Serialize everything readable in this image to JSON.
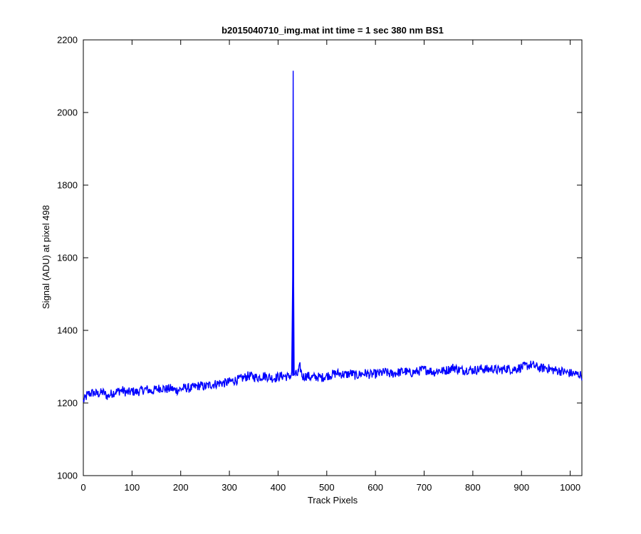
{
  "chart_data": {
    "type": "line",
    "title": "b2015040710_img.mat int time = 1 sec  380 nm BS1",
    "xlabel": "Track Pixels",
    "ylabel": "Signal (ADU) at pixel 498",
    "xlim": [
      0,
      1024
    ],
    "ylim": [
      1000,
      2200
    ],
    "xticks": [
      0,
      100,
      200,
      300,
      400,
      500,
      600,
      700,
      800,
      900,
      1000
    ],
    "yticks": [
      1000,
      1200,
      1400,
      1600,
      1800,
      2000,
      2200
    ],
    "grid": false,
    "legend": "none",
    "series": [
      {
        "color": "#0000ff",
        "points": [
          [
            0,
            1205
          ],
          [
            10,
            1225
          ],
          [
            20,
            1228
          ],
          [
            30,
            1225
          ],
          [
            40,
            1230
          ],
          [
            50,
            1218
          ],
          [
            60,
            1228
          ],
          [
            70,
            1232
          ],
          [
            80,
            1235
          ],
          [
            90,
            1228
          ],
          [
            100,
            1232
          ],
          [
            110,
            1230
          ],
          [
            120,
            1235
          ],
          [
            130,
            1238
          ],
          [
            140,
            1232
          ],
          [
            150,
            1238
          ],
          [
            160,
            1242
          ],
          [
            170,
            1238
          ],
          [
            180,
            1240
          ],
          [
            190,
            1235
          ],
          [
            200,
            1238
          ],
          [
            210,
            1242
          ],
          [
            220,
            1240
          ],
          [
            230,
            1245
          ],
          [
            240,
            1248
          ],
          [
            250,
            1245
          ],
          [
            260,
            1250
          ],
          [
            270,
            1252
          ],
          [
            280,
            1255
          ],
          [
            290,
            1255
          ],
          [
            300,
            1258
          ],
          [
            310,
            1262
          ],
          [
            320,
            1265
          ],
          [
            330,
            1270
          ],
          [
            340,
            1275
          ],
          [
            350,
            1272
          ],
          [
            360,
            1270
          ],
          [
            370,
            1275
          ],
          [
            380,
            1272
          ],
          [
            390,
            1268
          ],
          [
            400,
            1272
          ],
          [
            410,
            1275
          ],
          [
            420,
            1272
          ],
          [
            425,
            1275
          ],
          [
            428,
            1278
          ],
          [
            430,
            1550
          ],
          [
            431,
            2115
          ],
          [
            432,
            1520
          ],
          [
            433,
            1280
          ],
          [
            440,
            1278
          ],
          [
            445,
            1300
          ],
          [
            450,
            1272
          ],
          [
            460,
            1275
          ],
          [
            470,
            1270
          ],
          [
            480,
            1272
          ],
          [
            490,
            1270
          ],
          [
            500,
            1275
          ],
          [
            510,
            1278
          ],
          [
            520,
            1282
          ],
          [
            530,
            1280
          ],
          [
            540,
            1278
          ],
          [
            550,
            1282
          ],
          [
            560,
            1275
          ],
          [
            570,
            1280
          ],
          [
            580,
            1282
          ],
          [
            590,
            1278
          ],
          [
            600,
            1280
          ],
          [
            610,
            1282
          ],
          [
            620,
            1285
          ],
          [
            630,
            1280
          ],
          [
            640,
            1282
          ],
          [
            650,
            1285
          ],
          [
            660,
            1288
          ],
          [
            670,
            1282
          ],
          [
            680,
            1285
          ],
          [
            690,
            1288
          ],
          [
            700,
            1292
          ],
          [
            710,
            1290
          ],
          [
            720,
            1285
          ],
          [
            730,
            1290
          ],
          [
            740,
            1288
          ],
          [
            750,
            1292
          ],
          [
            760,
            1298
          ],
          [
            770,
            1292
          ],
          [
            780,
            1290
          ],
          [
            790,
            1292
          ],
          [
            800,
            1290
          ],
          [
            810,
            1292
          ],
          [
            820,
            1295
          ],
          [
            830,
            1292
          ],
          [
            840,
            1295
          ],
          [
            850,
            1290
          ],
          [
            860,
            1292
          ],
          [
            870,
            1295
          ],
          [
            880,
            1292
          ],
          [
            890,
            1295
          ],
          [
            900,
            1298
          ],
          [
            910,
            1302
          ],
          [
            920,
            1305
          ],
          [
            930,
            1300
          ],
          [
            940,
            1295
          ],
          [
            950,
            1298
          ],
          [
            960,
            1292
          ],
          [
            970,
            1290
          ],
          [
            980,
            1288
          ],
          [
            990,
            1285
          ],
          [
            1000,
            1282
          ],
          [
            1010,
            1280
          ],
          [
            1020,
            1278
          ],
          [
            1024,
            1275
          ]
        ]
      }
    ]
  }
}
